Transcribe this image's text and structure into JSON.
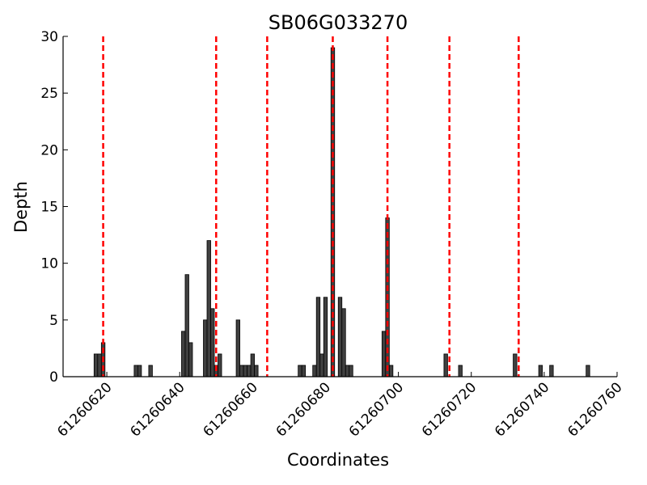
{
  "chart_data": {
    "type": "bar",
    "title": "SB06G033270",
    "xlabel": "Coordinates",
    "ylabel": "Depth",
    "xlim": [
      61260608,
      61260760
    ],
    "ylim": [
      0,
      30
    ],
    "x_ticks": [
      61260620,
      61260640,
      61260660,
      61260680,
      61260700,
      61260720,
      61260740,
      61260760
    ],
    "y_ticks": [
      0,
      5,
      10,
      15,
      20,
      25,
      30
    ],
    "grid": false,
    "bar_color": "#404040",
    "marker_color": "#ff0000",
    "x": [
      61260617,
      61260618,
      61260619,
      61260628,
      61260629,
      61260632,
      61260641,
      61260642,
      61260643,
      61260647,
      61260648,
      61260649,
      61260650,
      61260651,
      61260656,
      61260657,
      61260658,
      61260659,
      61260660,
      61260661,
      61260673,
      61260674,
      61260677,
      61260678,
      61260679,
      61260680,
      61260682,
      61260684,
      61260685,
      61260686,
      61260687,
      61260696,
      61260697,
      61260698,
      61260713,
      61260717,
      61260732,
      61260739,
      61260742,
      61260752
    ],
    "values": [
      2,
      2,
      3,
      1,
      1,
      1,
      4,
      9,
      3,
      5,
      12,
      6,
      1,
      2,
      5,
      1,
      1,
      1,
      2,
      1,
      1,
      1,
      1,
      7,
      2,
      7,
      29,
      7,
      6,
      1,
      1,
      4,
      14,
      1,
      2,
      1,
      2,
      1,
      1,
      1
    ],
    "markers_x": [
      61260619,
      61260650,
      61260664,
      61260682,
      61260697,
      61260714,
      61260733
    ]
  }
}
